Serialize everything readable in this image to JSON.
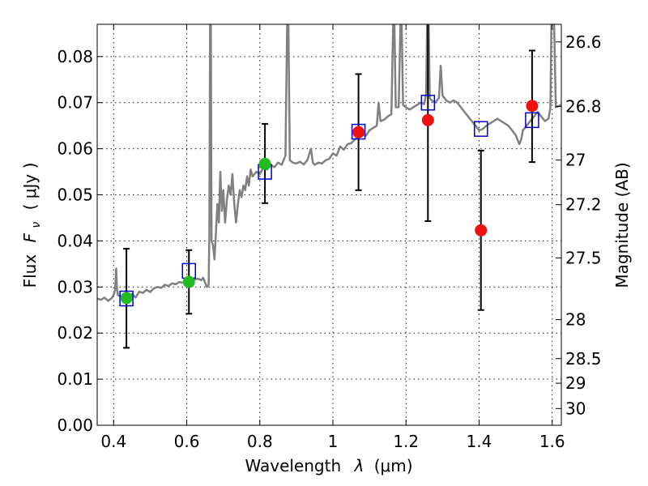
{
  "chart_data": {
    "type": "scatter",
    "xlabel": "Wavelength",
    "xlabel_symbol": "λ",
    "xlabel_unit": "(μm)",
    "ylabel_prefix": "Flux",
    "ylabel_symbol_base": "F",
    "ylabel_symbol_sub": "ν",
    "ylabel_unit": "( μJy )",
    "y2label": "Magnitude (AB)",
    "xlim": [
      0.355,
      1.625
    ],
    "ylim": [
      0.0,
      0.087
    ],
    "xticks": [
      "0.4",
      "0.6",
      "0.8",
      "1",
      "1.2",
      "1.4",
      "1.6"
    ],
    "xtick_values": [
      0.4,
      0.6,
      0.8,
      1.0,
      1.2,
      1.4,
      1.6
    ],
    "yticks": [
      "0.00",
      "0.01",
      "0.02",
      "0.03",
      "0.04",
      "0.05",
      "0.06",
      "0.07",
      "0.08"
    ],
    "ytick_values": [
      0.0,
      0.01,
      0.02,
      0.03,
      0.04,
      0.05,
      0.06,
      0.07,
      0.08
    ],
    "y2ticks": [
      "26.6",
      "26.8",
      "27",
      "27.2",
      "27.5",
      "28",
      "28.5",
      "29",
      "30"
    ],
    "y2tick_values": [
      26.6,
      26.8,
      27.0,
      27.2,
      27.5,
      28.0,
      28.5,
      29.0,
      30.0
    ],
    "grid": true,
    "colors": {
      "spectrum": "#808080",
      "model_box": "#0000cc",
      "optical": "#22bb22",
      "nir": "#ee1111",
      "errorbar": "#000000"
    },
    "model_photometry": [
      {
        "x": 0.435,
        "y": 0.0275
      },
      {
        "x": 0.606,
        "y": 0.0335
      },
      {
        "x": 0.814,
        "y": 0.055
      },
      {
        "x": 1.07,
        "y": 0.0637
      },
      {
        "x": 1.26,
        "y": 0.07
      },
      {
        "x": 1.405,
        "y": 0.0643
      },
      {
        "x": 1.545,
        "y": 0.0662
      }
    ],
    "observed_optical": [
      {
        "x": 0.435,
        "y": 0.0276,
        "ylow": 0.0168,
        "yhigh": 0.0383
      },
      {
        "x": 0.606,
        "y": 0.0311,
        "ylow": 0.0242,
        "yhigh": 0.038
      },
      {
        "x": 0.814,
        "y": 0.0567,
        "ylow": 0.0482,
        "yhigh": 0.0654
      }
    ],
    "observed_nir": [
      {
        "x": 1.07,
        "y": 0.0636,
        "ylow": 0.051,
        "yhigh": 0.0762
      },
      {
        "x": 1.26,
        "y": 0.0662,
        "ylow": 0.0443,
        "yhigh": 0.088
      },
      {
        "x": 1.405,
        "y": 0.0423,
        "ylow": 0.025,
        "yhigh": 0.0596
      },
      {
        "x": 1.545,
        "y": 0.0693,
        "ylow": 0.0571,
        "yhigh": 0.0813
      }
    ],
    "spectrum": [
      [
        0.355,
        0.0275
      ],
      [
        0.365,
        0.0272
      ],
      [
        0.375,
        0.0277
      ],
      [
        0.385,
        0.027
      ],
      [
        0.395,
        0.0276
      ],
      [
        0.4,
        0.0283
      ],
      [
        0.404,
        0.0294
      ],
      [
        0.407,
        0.034
      ],
      [
        0.409,
        0.0295
      ],
      [
        0.412,
        0.0282
      ],
      [
        0.42,
        0.028
      ],
      [
        0.43,
        0.0268
      ],
      [
        0.44,
        0.028
      ],
      [
        0.45,
        0.0285
      ],
      [
        0.46,
        0.0277
      ],
      [
        0.47,
        0.029
      ],
      [
        0.48,
        0.0287
      ],
      [
        0.49,
        0.0294
      ],
      [
        0.5,
        0.0289
      ],
      [
        0.51,
        0.0297
      ],
      [
        0.52,
        0.03
      ],
      [
        0.53,
        0.0298
      ],
      [
        0.54,
        0.0305
      ],
      [
        0.55,
        0.0302
      ],
      [
        0.56,
        0.0308
      ],
      [
        0.57,
        0.0306
      ],
      [
        0.58,
        0.0311
      ],
      [
        0.59,
        0.0309
      ],
      [
        0.6,
        0.0314
      ],
      [
        0.61,
        0.0312
      ],
      [
        0.62,
        0.0316
      ],
      [
        0.63,
        0.0318
      ],
      [
        0.64,
        0.0315
      ],
      [
        0.645,
        0.032
      ],
      [
        0.65,
        0.031
      ],
      [
        0.655,
        0.03
      ],
      [
        0.66,
        0.0305
      ],
      [
        0.662,
        0.042
      ],
      [
        0.664,
        0.088
      ],
      [
        0.666,
        0.088
      ],
      [
        0.668,
        0.04
      ],
      [
        0.672,
        0.039
      ],
      [
        0.676,
        0.036
      ],
      [
        0.68,
        0.042
      ],
      [
        0.684,
        0.048
      ],
      [
        0.688,
        0.044
      ],
      [
        0.692,
        0.055
      ],
      [
        0.696,
        0.0465
      ],
      [
        0.7,
        0.051
      ],
      [
        0.705,
        0.044
      ],
      [
        0.71,
        0.049
      ],
      [
        0.715,
        0.052
      ],
      [
        0.72,
        0.05
      ],
      [
        0.725,
        0.0545
      ],
      [
        0.73,
        0.048
      ],
      [
        0.735,
        0.044
      ],
      [
        0.74,
        0.048
      ],
      [
        0.745,
        0.051
      ],
      [
        0.75,
        0.0495
      ],
      [
        0.755,
        0.052
      ],
      [
        0.76,
        0.051
      ],
      [
        0.765,
        0.054
      ],
      [
        0.77,
        0.052
      ],
      [
        0.775,
        0.0555
      ],
      [
        0.78,
        0.054
      ],
      [
        0.79,
        0.055
      ],
      [
        0.8,
        0.0545
      ],
      [
        0.81,
        0.056
      ],
      [
        0.82,
        0.0555
      ],
      [
        0.83,
        0.0565
      ],
      [
        0.84,
        0.056
      ],
      [
        0.85,
        0.057
      ],
      [
        0.86,
        0.0565
      ],
      [
        0.87,
        0.0585
      ],
      [
        0.875,
        0.088
      ],
      [
        0.878,
        0.088
      ],
      [
        0.882,
        0.0575
      ],
      [
        0.89,
        0.057
      ],
      [
        0.9,
        0.0568
      ],
      [
        0.91,
        0.0572
      ],
      [
        0.92,
        0.0566
      ],
      [
        0.93,
        0.0575
      ],
      [
        0.94,
        0.06
      ],
      [
        0.945,
        0.057
      ],
      [
        0.95,
        0.0565
      ],
      [
        0.96,
        0.057
      ],
      [
        0.97,
        0.0568
      ],
      [
        0.98,
        0.0575
      ],
      [
        0.99,
        0.0578
      ],
      [
        1.0,
        0.059
      ],
      [
        1.01,
        0.0585
      ],
      [
        1.02,
        0.0605
      ],
      [
        1.03,
        0.0598
      ],
      [
        1.04,
        0.061
      ],
      [
        1.05,
        0.0612
      ],
      [
        1.06,
        0.062
      ],
      [
        1.07,
        0.0625
      ],
      [
        1.08,
        0.063
      ],
      [
        1.09,
        0.0628
      ],
      [
        1.1,
        0.064
      ],
      [
        1.11,
        0.0645
      ],
      [
        1.12,
        0.065
      ],
      [
        1.125,
        0.07
      ],
      [
        1.13,
        0.066
      ],
      [
        1.14,
        0.0663
      ],
      [
        1.15,
        0.067
      ],
      [
        1.16,
        0.0675
      ],
      [
        1.165,
        0.088
      ],
      [
        1.168,
        0.088
      ],
      [
        1.172,
        0.069
      ],
      [
        1.18,
        0.069
      ],
      [
        1.185,
        0.088
      ],
      [
        1.188,
        0.088
      ],
      [
        1.192,
        0.0695
      ],
      [
        1.2,
        0.069
      ],
      [
        1.21,
        0.0685
      ],
      [
        1.22,
        0.069
      ],
      [
        1.23,
        0.0695
      ],
      [
        1.24,
        0.07
      ],
      [
        1.25,
        0.0697
      ],
      [
        1.255,
        0.072
      ],
      [
        1.258,
        0.088
      ],
      [
        1.262,
        0.088
      ],
      [
        1.265,
        0.071
      ],
      [
        1.27,
        0.0705
      ],
      [
        1.28,
        0.07
      ],
      [
        1.29,
        0.071
      ],
      [
        1.295,
        0.078
      ],
      [
        1.3,
        0.0715
      ],
      [
        1.31,
        0.0705
      ],
      [
        1.32,
        0.07
      ],
      [
        1.33,
        0.0705
      ],
      [
        1.34,
        0.07
      ],
      [
        1.35,
        0.069
      ],
      [
        1.36,
        0.068
      ],
      [
        1.37,
        0.067
      ],
      [
        1.38,
        0.066
      ],
      [
        1.39,
        0.065
      ],
      [
        1.4,
        0.064
      ],
      [
        1.41,
        0.0643
      ],
      [
        1.42,
        0.065
      ],
      [
        1.43,
        0.0655
      ],
      [
        1.44,
        0.066
      ],
      [
        1.45,
        0.0665
      ],
      [
        1.46,
        0.066
      ],
      [
        1.47,
        0.0655
      ],
      [
        1.48,
        0.065
      ],
      [
        1.49,
        0.064
      ],
      [
        1.5,
        0.063
      ],
      [
        1.51,
        0.061
      ],
      [
        1.515,
        0.062
      ],
      [
        1.52,
        0.064
      ],
      [
        1.53,
        0.065
      ],
      [
        1.54,
        0.066
      ],
      [
        1.55,
        0.067
      ],
      [
        1.56,
        0.068
      ],
      [
        1.57,
        0.067
      ],
      [
        1.58,
        0.066
      ],
      [
        1.59,
        0.0665
      ],
      [
        1.595,
        0.069
      ],
      [
        1.598,
        0.088
      ],
      [
        1.605,
        0.088
      ],
      [
        1.61,
        0.069
      ],
      [
        1.625,
        0.0695
      ]
    ]
  }
}
